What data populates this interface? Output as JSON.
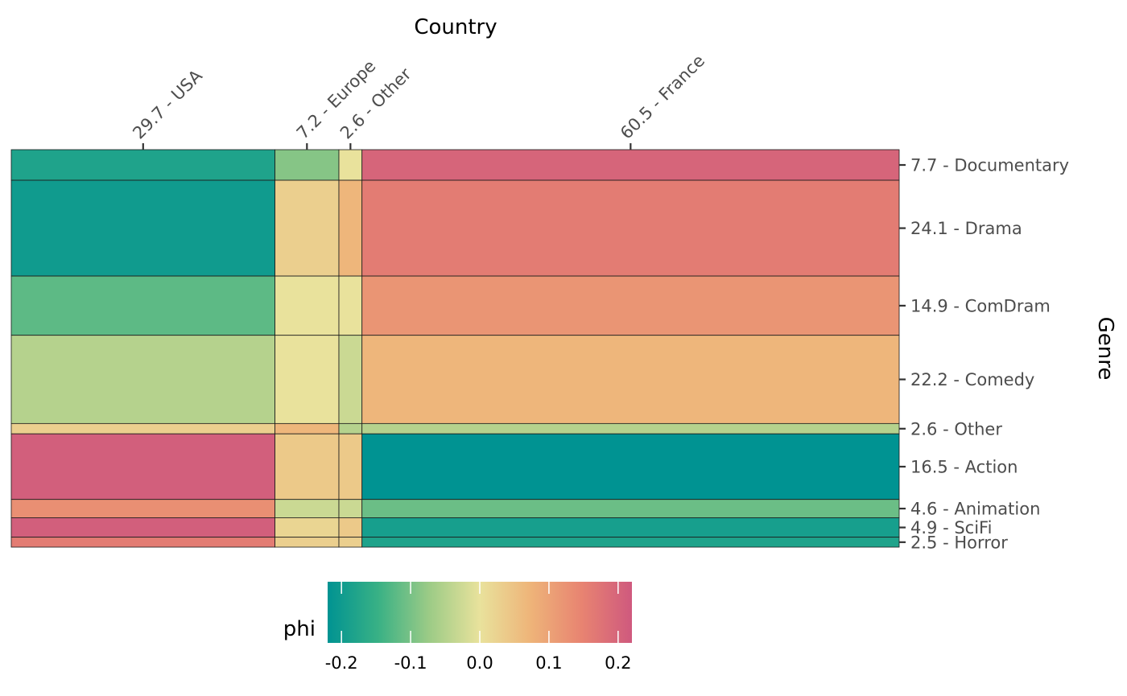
{
  "chart_data": {
    "type": "heatmap",
    "subtype": "mosaic",
    "xlabel": "Country",
    "ylabel": "Genre",
    "x_categories": [
      {
        "label": "29.7 - USA",
        "share": 29.7
      },
      {
        "label": "7.2 - Europe",
        "share": 7.2
      },
      {
        "label": "2.6 - Other",
        "share": 2.6
      },
      {
        "label": "60.5 - France",
        "share": 60.5
      }
    ],
    "y_categories": [
      {
        "label": "7.7 - Documentary",
        "share": 7.7
      },
      {
        "label": "24.1 - Drama",
        "share": 24.1
      },
      {
        "label": "14.9 - ComDram",
        "share": 14.9
      },
      {
        "label": "22.2 - Comedy",
        "share": 22.2
      },
      {
        "label": "2.6 - Other",
        "share": 2.6
      },
      {
        "label": "16.5 - Action",
        "share": 16.5
      },
      {
        "label": "4.6 - Animation",
        "share": 4.6
      },
      {
        "label": "4.9 - SciFi",
        "share": 4.9
      },
      {
        "label": "2.5 - Horror",
        "share": 2.5
      }
    ],
    "phi": [
      [
        -0.18,
        -0.09,
        0.0,
        0.2
      ],
      [
        -0.2,
        0.03,
        0.07,
        0.16
      ],
      [
        -0.12,
        0.0,
        0.0,
        0.12
      ],
      [
        -0.05,
        0.0,
        -0.03,
        0.07
      ],
      [
        0.03,
        0.07,
        -0.05,
        -0.05
      ],
      [
        0.21,
        0.04,
        0.04,
        -0.22
      ],
      [
        0.13,
        -0.03,
        -0.03,
        -0.11
      ],
      [
        0.21,
        0.02,
        0.04,
        -0.19
      ],
      [
        0.16,
        0.03,
        0.03,
        -0.18
      ]
    ],
    "legend": {
      "title": "phi",
      "range": [
        -0.22,
        0.22
      ],
      "ticks": [
        -0.2,
        -0.1,
        0.0,
        0.1,
        0.2
      ],
      "tick_labels": [
        "-0.2",
        "-0.1",
        "0.0",
        "0.1",
        "0.2"
      ],
      "placement": "bottom",
      "colors": [
        "#009392",
        "#39b185",
        "#9ccb86",
        "#e9e29c",
        "#eeb479",
        "#e88471",
        "#cf597e"
      ]
    },
    "grid": false
  }
}
